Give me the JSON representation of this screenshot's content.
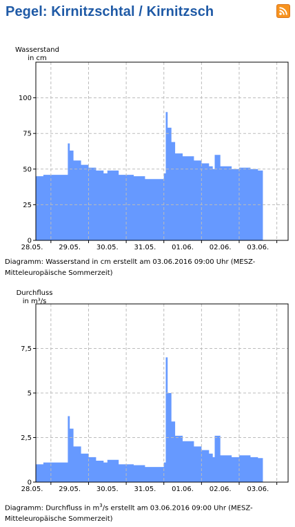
{
  "page": {
    "title": "Pegel: Kirnitzschtal / Kirnitzsch",
    "rss_icon": "rss-feed-icon"
  },
  "charts": [
    {
      "ylabel_line1": "Wasserstand",
      "ylabel_line2": "in cm",
      "caption": "Diagramm: Wasserstand in cm erstellt am 03.06.2016 09:00 Uhr (MESZ-Mitteleuropäische Sommerzeit)"
    },
    {
      "ylabel_line1": "Durchfluss",
      "ylabel_line2": "in m³/s",
      "caption_pre": "Diagramm: Durchfluss in m",
      "caption_sup": "3",
      "caption_post": "/s erstellt am 03.06.2016 09:00 Uhr (MESZ-Mitteleuropäische Sommerzeit)"
    }
  ],
  "chart_data": [
    {
      "type": "area",
      "ylabel": "Wasserstand in cm",
      "ylim": [
        0,
        125
      ],
      "yticks": [
        0,
        25,
        50,
        75,
        100
      ],
      "ytick_labels": [
        "0",
        "25",
        "50",
        "75",
        "100"
      ],
      "xlim": [
        27.6,
        34.3
      ],
      "xticks": [
        28.0,
        29.0,
        30.0,
        31.0,
        32.0,
        33.0,
        34.0
      ],
      "xtick_labels": [
        "28.05.",
        "29.05.",
        "30.05.",
        "31.05.",
        "01.06.",
        "02.06.",
        "03.06."
      ],
      "grid": true,
      "color": "#6699ff",
      "series": [
        {
          "x": [
            27.6,
            27.8,
            28.0,
            28.2,
            28.4,
            28.45,
            28.5,
            28.6,
            28.8,
            29.0,
            29.2,
            29.4,
            29.5,
            29.8,
            30.0,
            30.2,
            30.5,
            30.7,
            31.0,
            31.05,
            31.1,
            31.2,
            31.3,
            31.5,
            31.8,
            32.0,
            32.2,
            32.3,
            32.35,
            32.5,
            32.8,
            33.0,
            33.3,
            33.5,
            33.6,
            33.63
          ],
          "y": [
            45,
            46,
            46,
            46,
            46,
            68,
            63,
            56,
            53,
            51,
            49,
            47,
            49,
            46,
            46,
            45,
            43,
            43,
            47,
            90,
            79,
            69,
            61,
            59,
            56,
            54,
            52,
            50,
            60,
            52,
            50,
            51,
            50,
            49,
            49,
            36
          ]
        }
      ]
    },
    {
      "type": "area",
      "ylabel": "Durchfluss in m³/s",
      "ylim": [
        0,
        10
      ],
      "yticks": [
        0,
        2.5,
        5,
        7.5
      ],
      "ytick_labels": [
        "0",
        "2,5",
        "5",
        "7,5"
      ],
      "xlim": [
        27.6,
        34.3
      ],
      "xticks": [
        28.0,
        29.0,
        30.0,
        31.0,
        32.0,
        33.0,
        34.0
      ],
      "xtick_labels": [
        "28.05.",
        "29.05.",
        "30.05.",
        "31.05.",
        "01.06.",
        "02.06.",
        "03.06."
      ],
      "grid": true,
      "color": "#6699ff",
      "series": [
        {
          "x": [
            27.6,
            27.8,
            28.0,
            28.2,
            28.4,
            28.45,
            28.5,
            28.6,
            28.8,
            29.0,
            29.2,
            29.4,
            29.5,
            29.8,
            30.0,
            30.2,
            30.5,
            30.7,
            31.0,
            31.05,
            31.1,
            31.2,
            31.3,
            31.5,
            31.8,
            32.0,
            32.2,
            32.3,
            32.35,
            32.5,
            32.8,
            33.0,
            33.3,
            33.5,
            33.6,
            33.63
          ],
          "y": [
            1.0,
            1.1,
            1.1,
            1.1,
            1.1,
            3.7,
            3.0,
            2.0,
            1.6,
            1.4,
            1.2,
            1.1,
            1.25,
            1.0,
            1.0,
            0.95,
            0.85,
            0.85,
            1.1,
            7.0,
            5.0,
            3.4,
            2.6,
            2.3,
            2.0,
            1.8,
            1.6,
            1.4,
            2.6,
            1.5,
            1.4,
            1.5,
            1.4,
            1.35,
            1.35,
            0.9
          ]
        }
      ]
    }
  ]
}
